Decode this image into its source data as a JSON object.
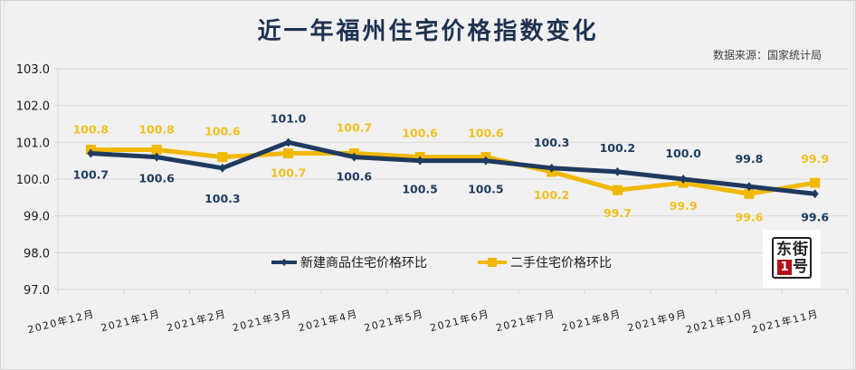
{
  "title": "近一年福州住宅价格指数变化",
  "source": "数据来源：国家统计局",
  "logo": {
    "chars": [
      "东",
      "街",
      "1",
      "号"
    ]
  },
  "colors": {
    "new_homes": "#1f3a5f",
    "second_hand": "#f0b800",
    "label_second_hand": "#f0c020",
    "grid": "#d9d9d9",
    "background": "#f1f1f1",
    "title": "#1f3150"
  },
  "legend": {
    "new_homes": "新建商品住宅价格环比",
    "second_hand": "二手住宅价格环比"
  },
  "y_axis": {
    "ticks": [
      "103.0",
      "102.0",
      "101.0",
      "100.0",
      "99.0",
      "98.0",
      "97.0"
    ]
  },
  "x_axis": {
    "ticks": [
      "2020年12月",
      "2021年1月",
      "2021年2月",
      "2021年3月",
      "2021年4月",
      "2021年5月",
      "2021年6月",
      "2021年7月",
      "2021年8月",
      "2021年9月",
      "2021年10月",
      "2021年11月"
    ]
  },
  "chart_data": {
    "type": "line",
    "title": "近一年福州住宅价格指数变化",
    "subtitle": "数据来源：国家统计局",
    "xlabel": "",
    "ylabel": "",
    "ylim": [
      97.0,
      103.0
    ],
    "grid": true,
    "legend_position": "bottom-center (inside plot)",
    "categories": [
      "2020年12月",
      "2021年1月",
      "2021年2月",
      "2021年3月",
      "2021年4月",
      "2021年5月",
      "2021年6月",
      "2021年7月",
      "2021年8月",
      "2021年9月",
      "2021年10月",
      "2021年11月"
    ],
    "series": [
      {
        "name": "新建商品住宅价格环比",
        "color": "#1f3a5f",
        "marker": "diamond",
        "values": [
          100.7,
          100.6,
          100.3,
          101.0,
          100.6,
          100.5,
          100.5,
          100.3,
          100.2,
          100.0,
          99.8,
          99.6
        ],
        "labels": [
          "100.7",
          "100.6",
          "100.3",
          "101.0",
          "100.6",
          "100.5",
          "100.5",
          "100.3",
          "100.2",
          "100.0",
          "99.8",
          "99.6"
        ]
      },
      {
        "name": "二手住宅价格环比",
        "color": "#f0b800",
        "marker": "square",
        "values": [
          100.8,
          100.8,
          100.6,
          100.7,
          100.7,
          100.6,
          100.6,
          100.2,
          99.7,
          99.9,
          99.6,
          99.9
        ],
        "labels": [
          "100.8",
          "100.8",
          "100.6",
          "100.7",
          "100.7",
          "100.6",
          "100.6",
          "100.2",
          "99.7",
          "99.9",
          "99.6",
          "99.9"
        ]
      }
    ]
  }
}
